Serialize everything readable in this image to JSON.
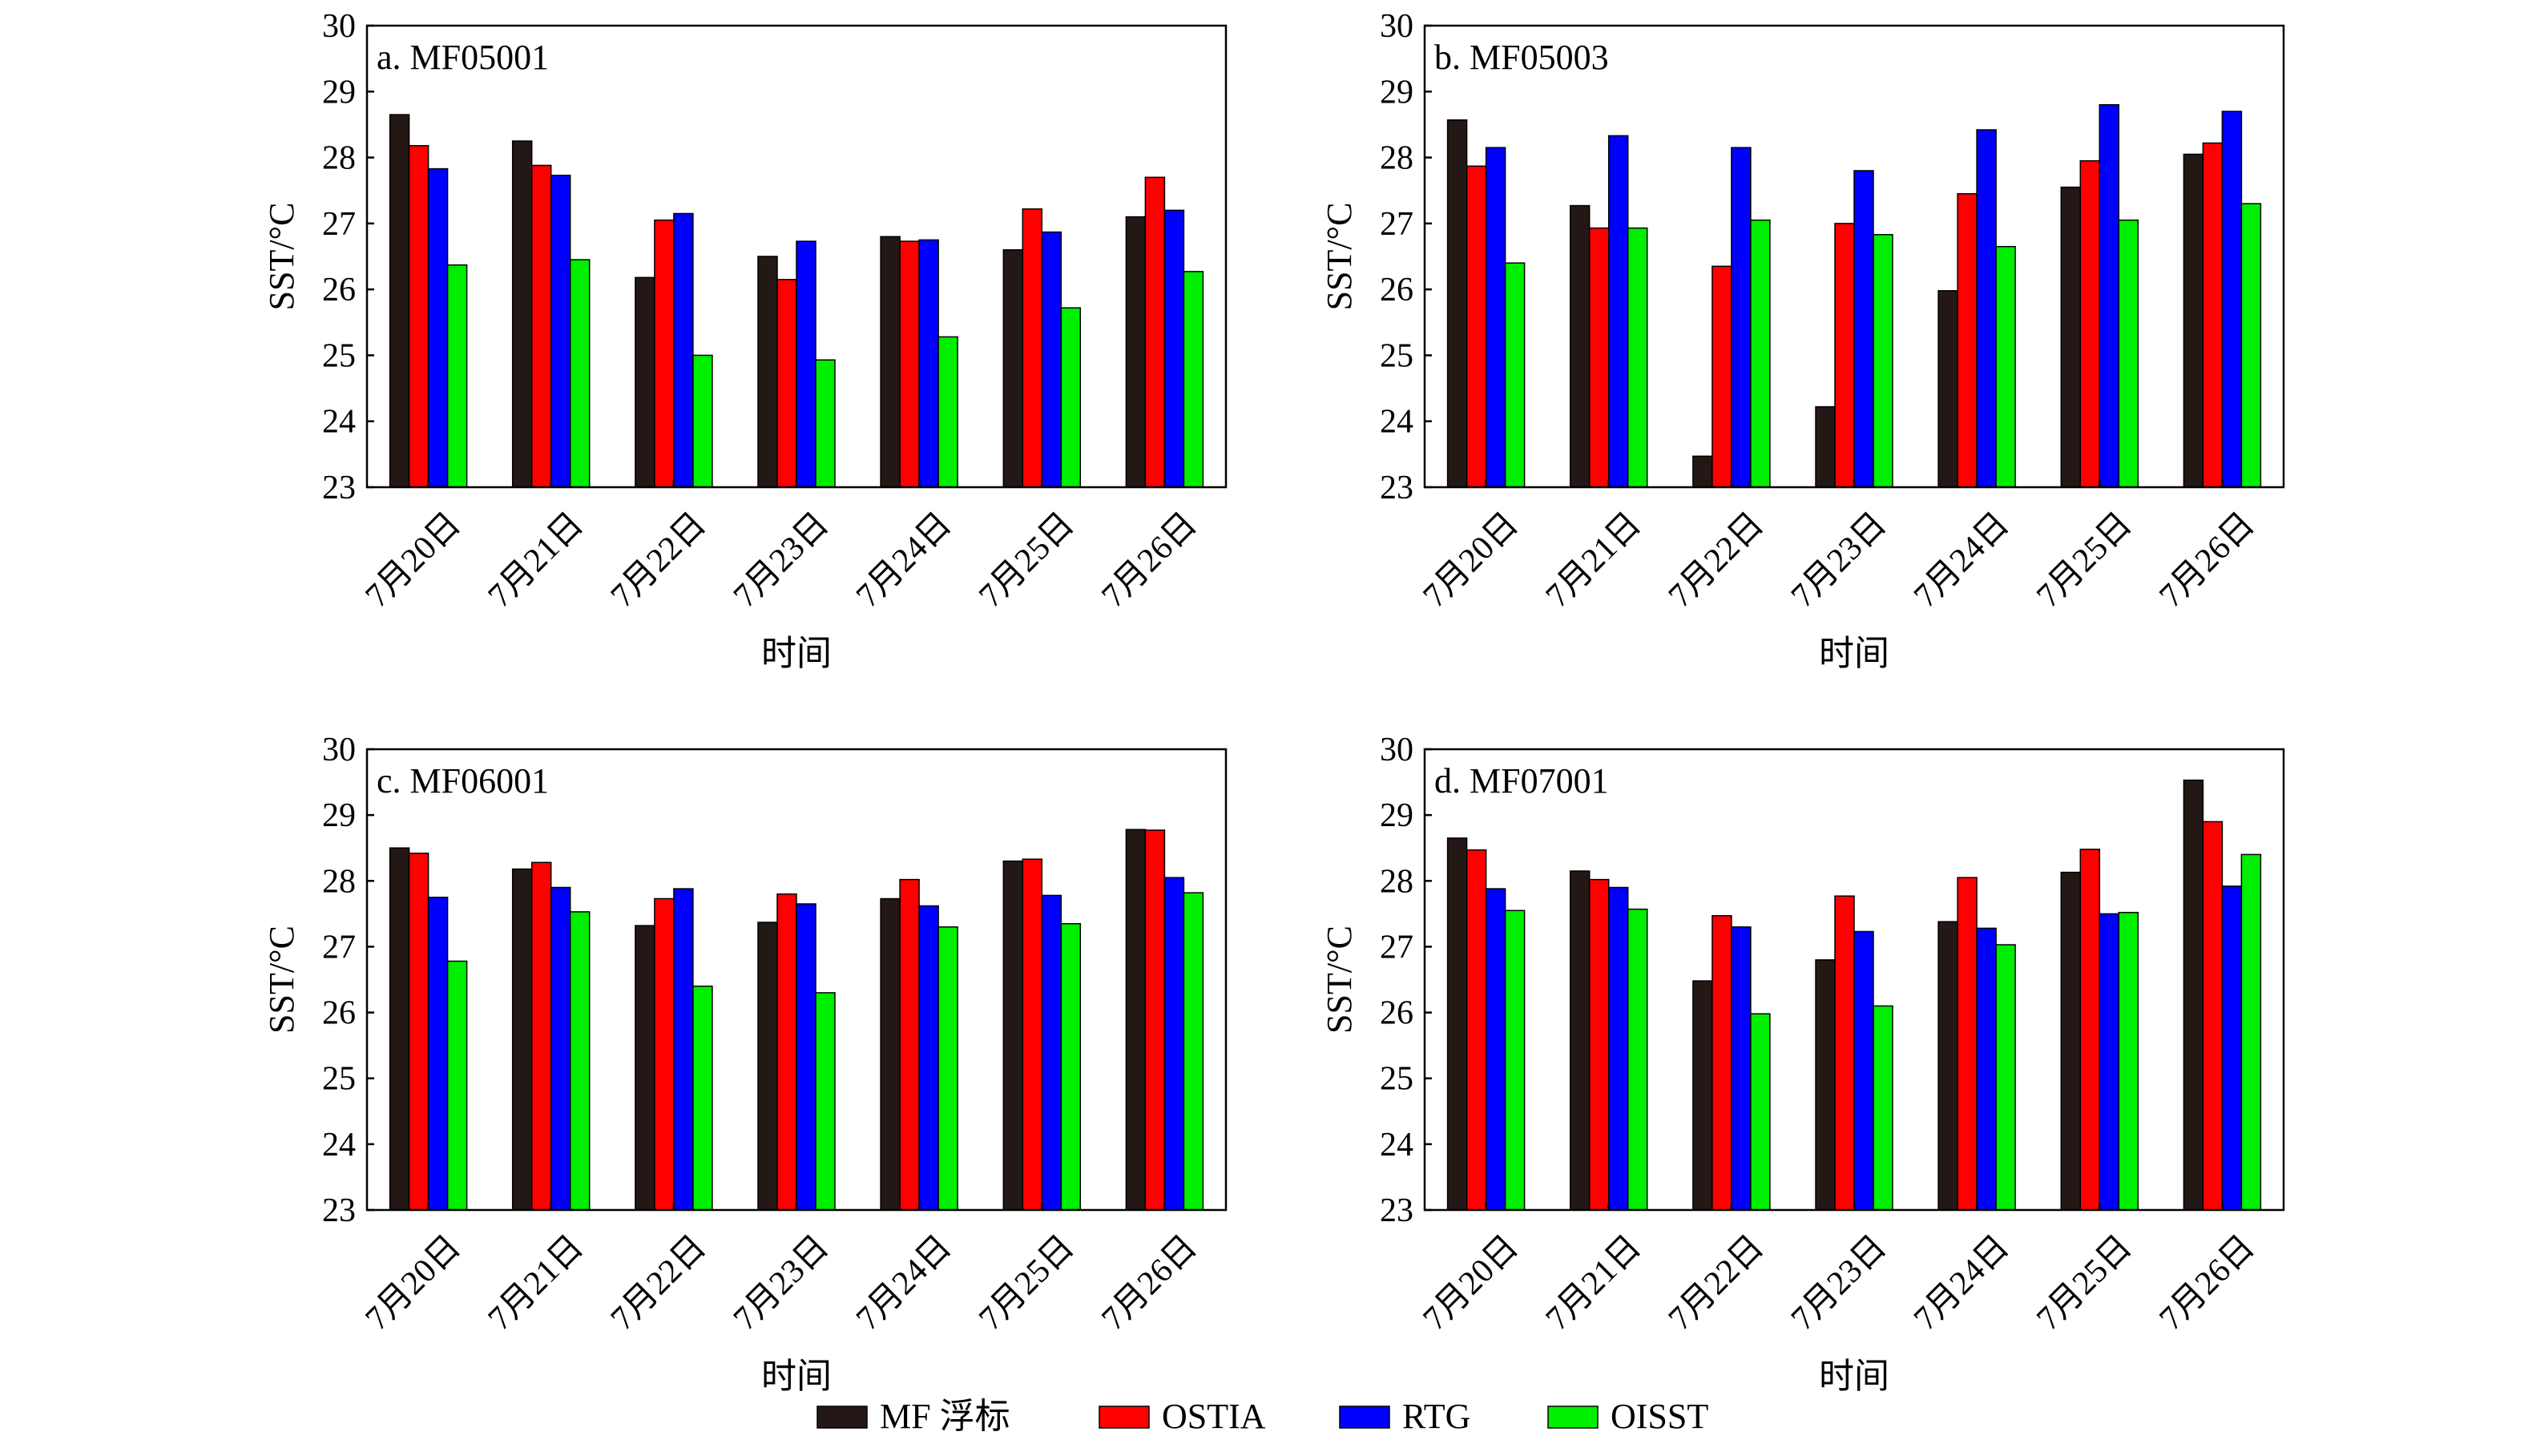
{
  "chart_data": [
    {
      "type": "bar",
      "title": "a. MF05001",
      "xlabel": "时间",
      "ylabel": "SST/°C",
      "ylim": [
        23,
        30
      ],
      "yticks": [
        "23",
        "24",
        "25",
        "26",
        "27",
        "28",
        "29",
        "30"
      ],
      "categories": [
        "7月20日",
        "7月21日",
        "7月22日",
        "7月23日",
        "7月24日",
        "7月25日",
        "7月26日"
      ],
      "series": [
        {
          "name": "MF 浮标",
          "values": [
            28.65,
            28.25,
            26.18,
            26.5,
            26.8,
            26.6,
            27.1
          ]
        },
        {
          "name": "OSTIA",
          "values": [
            28.18,
            27.88,
            27.05,
            26.15,
            26.73,
            27.22,
            27.7
          ]
        },
        {
          "name": "RTG",
          "values": [
            27.83,
            27.73,
            27.15,
            26.73,
            26.75,
            26.87,
            27.2
          ]
        },
        {
          "name": "OISST",
          "values": [
            26.37,
            26.45,
            25.0,
            24.93,
            25.28,
            25.72,
            26.27
          ]
        }
      ],
      "grid": false
    },
    {
      "type": "bar",
      "title": "b. MF05003",
      "xlabel": "时间",
      "ylabel": "SST/°C",
      "ylim": [
        23,
        30
      ],
      "yticks": [
        "23",
        "24",
        "25",
        "26",
        "27",
        "28",
        "29",
        "30"
      ],
      "categories": [
        "7月20日",
        "7月21日",
        "7月22日",
        "7月23日",
        "7月24日",
        "7月25日",
        "7月26日"
      ],
      "series": [
        {
          "name": "MF 浮标",
          "values": [
            28.57,
            27.27,
            23.47,
            24.22,
            25.98,
            27.55,
            28.05
          ]
        },
        {
          "name": "OSTIA",
          "values": [
            27.87,
            26.93,
            26.35,
            27.0,
            27.45,
            27.95,
            28.22
          ]
        },
        {
          "name": "RTG",
          "values": [
            28.15,
            28.33,
            28.15,
            27.8,
            28.42,
            28.8,
            28.7
          ]
        },
        {
          "name": "OISST",
          "values": [
            26.4,
            26.93,
            27.05,
            26.83,
            26.65,
            27.05,
            27.3
          ]
        }
      ],
      "grid": false
    },
    {
      "type": "bar",
      "title": "c. MF06001",
      "xlabel": "时间",
      "ylabel": "SST/°C",
      "ylim": [
        23,
        30
      ],
      "yticks": [
        "23",
        "24",
        "25",
        "26",
        "27",
        "28",
        "29",
        "30"
      ],
      "categories": [
        "7月20日",
        "7月21日",
        "7月22日",
        "7月23日",
        "7月24日",
        "7月25日",
        "7月26日"
      ],
      "series": [
        {
          "name": "MF 浮标",
          "values": [
            28.5,
            28.18,
            27.32,
            27.37,
            27.73,
            28.3,
            28.78
          ]
        },
        {
          "name": "OSTIA",
          "values": [
            28.42,
            28.28,
            27.73,
            27.8,
            28.02,
            28.33,
            28.77
          ]
        },
        {
          "name": "RTG",
          "values": [
            27.75,
            27.9,
            27.88,
            27.65,
            27.62,
            27.78,
            28.05
          ]
        },
        {
          "name": "OISST",
          "values": [
            26.78,
            27.53,
            26.4,
            26.3,
            27.3,
            27.35,
            27.82
          ]
        }
      ],
      "grid": false
    },
    {
      "type": "bar",
      "title": "d. MF07001",
      "xlabel": "时间",
      "ylabel": "SST/°C",
      "ylim": [
        23,
        30
      ],
      "yticks": [
        "23",
        "24",
        "25",
        "26",
        "27",
        "28",
        "29",
        "30"
      ],
      "categories": [
        "7月20日",
        "7月21日",
        "7月22日",
        "7月23日",
        "7月24日",
        "7月25日",
        "7月26日"
      ],
      "series": [
        {
          "name": "MF 浮标",
          "values": [
            28.65,
            28.15,
            26.48,
            26.8,
            27.38,
            28.13,
            29.53
          ]
        },
        {
          "name": "OSTIA",
          "values": [
            28.47,
            28.02,
            27.47,
            27.77,
            28.05,
            28.48,
            28.9
          ]
        },
        {
          "name": "RTG",
          "values": [
            27.88,
            27.9,
            27.3,
            27.23,
            27.28,
            27.5,
            27.92
          ]
        },
        {
          "name": "OISST",
          "values": [
            27.55,
            27.57,
            25.98,
            26.1,
            27.03,
            27.52,
            28.4
          ]
        }
      ],
      "grid": false
    }
  ],
  "legend": {
    "placement": "bottom-center",
    "items": [
      {
        "label": "MF 浮标",
        "color": "#231815"
      },
      {
        "label": "OSTIA",
        "color": "#ff0000"
      },
      {
        "label": "RTG",
        "color": "#0000ff"
      },
      {
        "label": "OISST",
        "color": "#00ee00"
      }
    ]
  }
}
